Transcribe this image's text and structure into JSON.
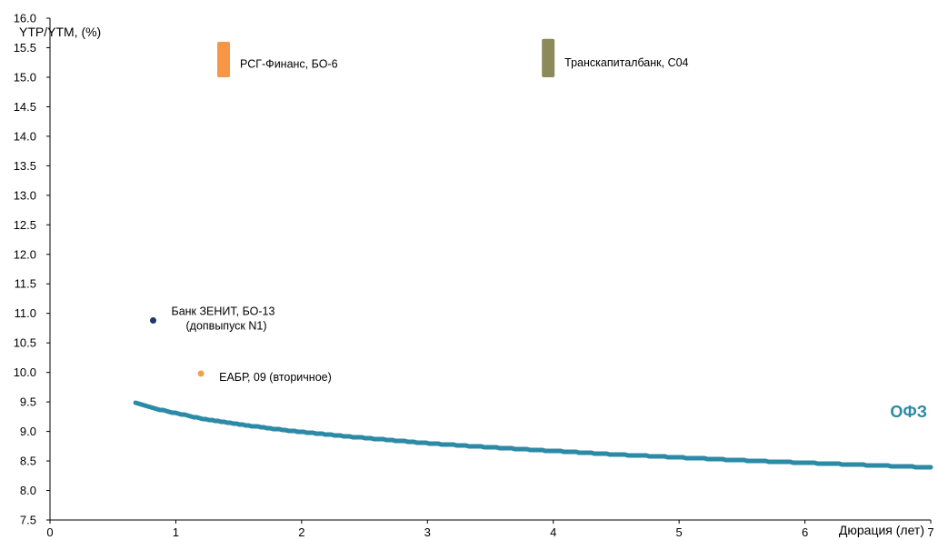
{
  "chart_data": {
    "type": "scatter",
    "ylabel": "YTP/YTM, (%)",
    "xlabel": "Дюрация (лет)",
    "xlim": [
      0,
      7
    ],
    "ylim": [
      7.5,
      16.0
    ],
    "xticks": [
      0,
      1,
      2,
      3,
      4,
      5,
      6,
      7
    ],
    "yticks": [
      7.5,
      8.0,
      8.5,
      9.0,
      9.5,
      10.0,
      10.5,
      11.0,
      11.5,
      12.0,
      12.5,
      13.0,
      13.5,
      14.0,
      14.5,
      15.0,
      15.5,
      16.0
    ],
    "grid": false,
    "curve": {
      "name": "ОФЗ",
      "color": "#2b8aa5",
      "points": [
        [
          0.68,
          9.48
        ],
        [
          0.75,
          9.44
        ],
        [
          0.85,
          9.38
        ],
        [
          1.0,
          9.31
        ],
        [
          1.2,
          9.22
        ],
        [
          1.5,
          9.12
        ],
        [
          1.8,
          9.04
        ],
        [
          2.0,
          8.99
        ],
        [
          2.5,
          8.89
        ],
        [
          3.0,
          8.8
        ],
        [
          3.5,
          8.73
        ],
        [
          4.0,
          8.67
        ],
        [
          4.5,
          8.61
        ],
        [
          5.0,
          8.56
        ],
        [
          5.5,
          8.51
        ],
        [
          6.0,
          8.47
        ],
        [
          6.5,
          8.43
        ],
        [
          7.0,
          8.39
        ]
      ]
    },
    "points": [
      {
        "label_lines": [
          "Банк ЗЕНИТ, БО-13",
          "(допвыпуск N1)"
        ],
        "x": 0.82,
        "y": 10.88,
        "color": "#1f3864",
        "label_side": "right"
      },
      {
        "label_lines": [
          "ЕАБР, 09 (вторичное)"
        ],
        "x": 1.2,
        "y": 9.98,
        "color": "#f4a04a",
        "label_side": "right"
      }
    ],
    "ranges": [
      {
        "label": "РСГ-Финанс, БО-6",
        "x": 1.38,
        "y_low": 15.0,
        "y_high": 15.6,
        "color": "#f79646"
      },
      {
        "label": "Транскапиталбанк, С04",
        "x": 3.96,
        "y_low": 15.0,
        "y_high": 15.65,
        "color": "#8c8a5a"
      }
    ]
  }
}
